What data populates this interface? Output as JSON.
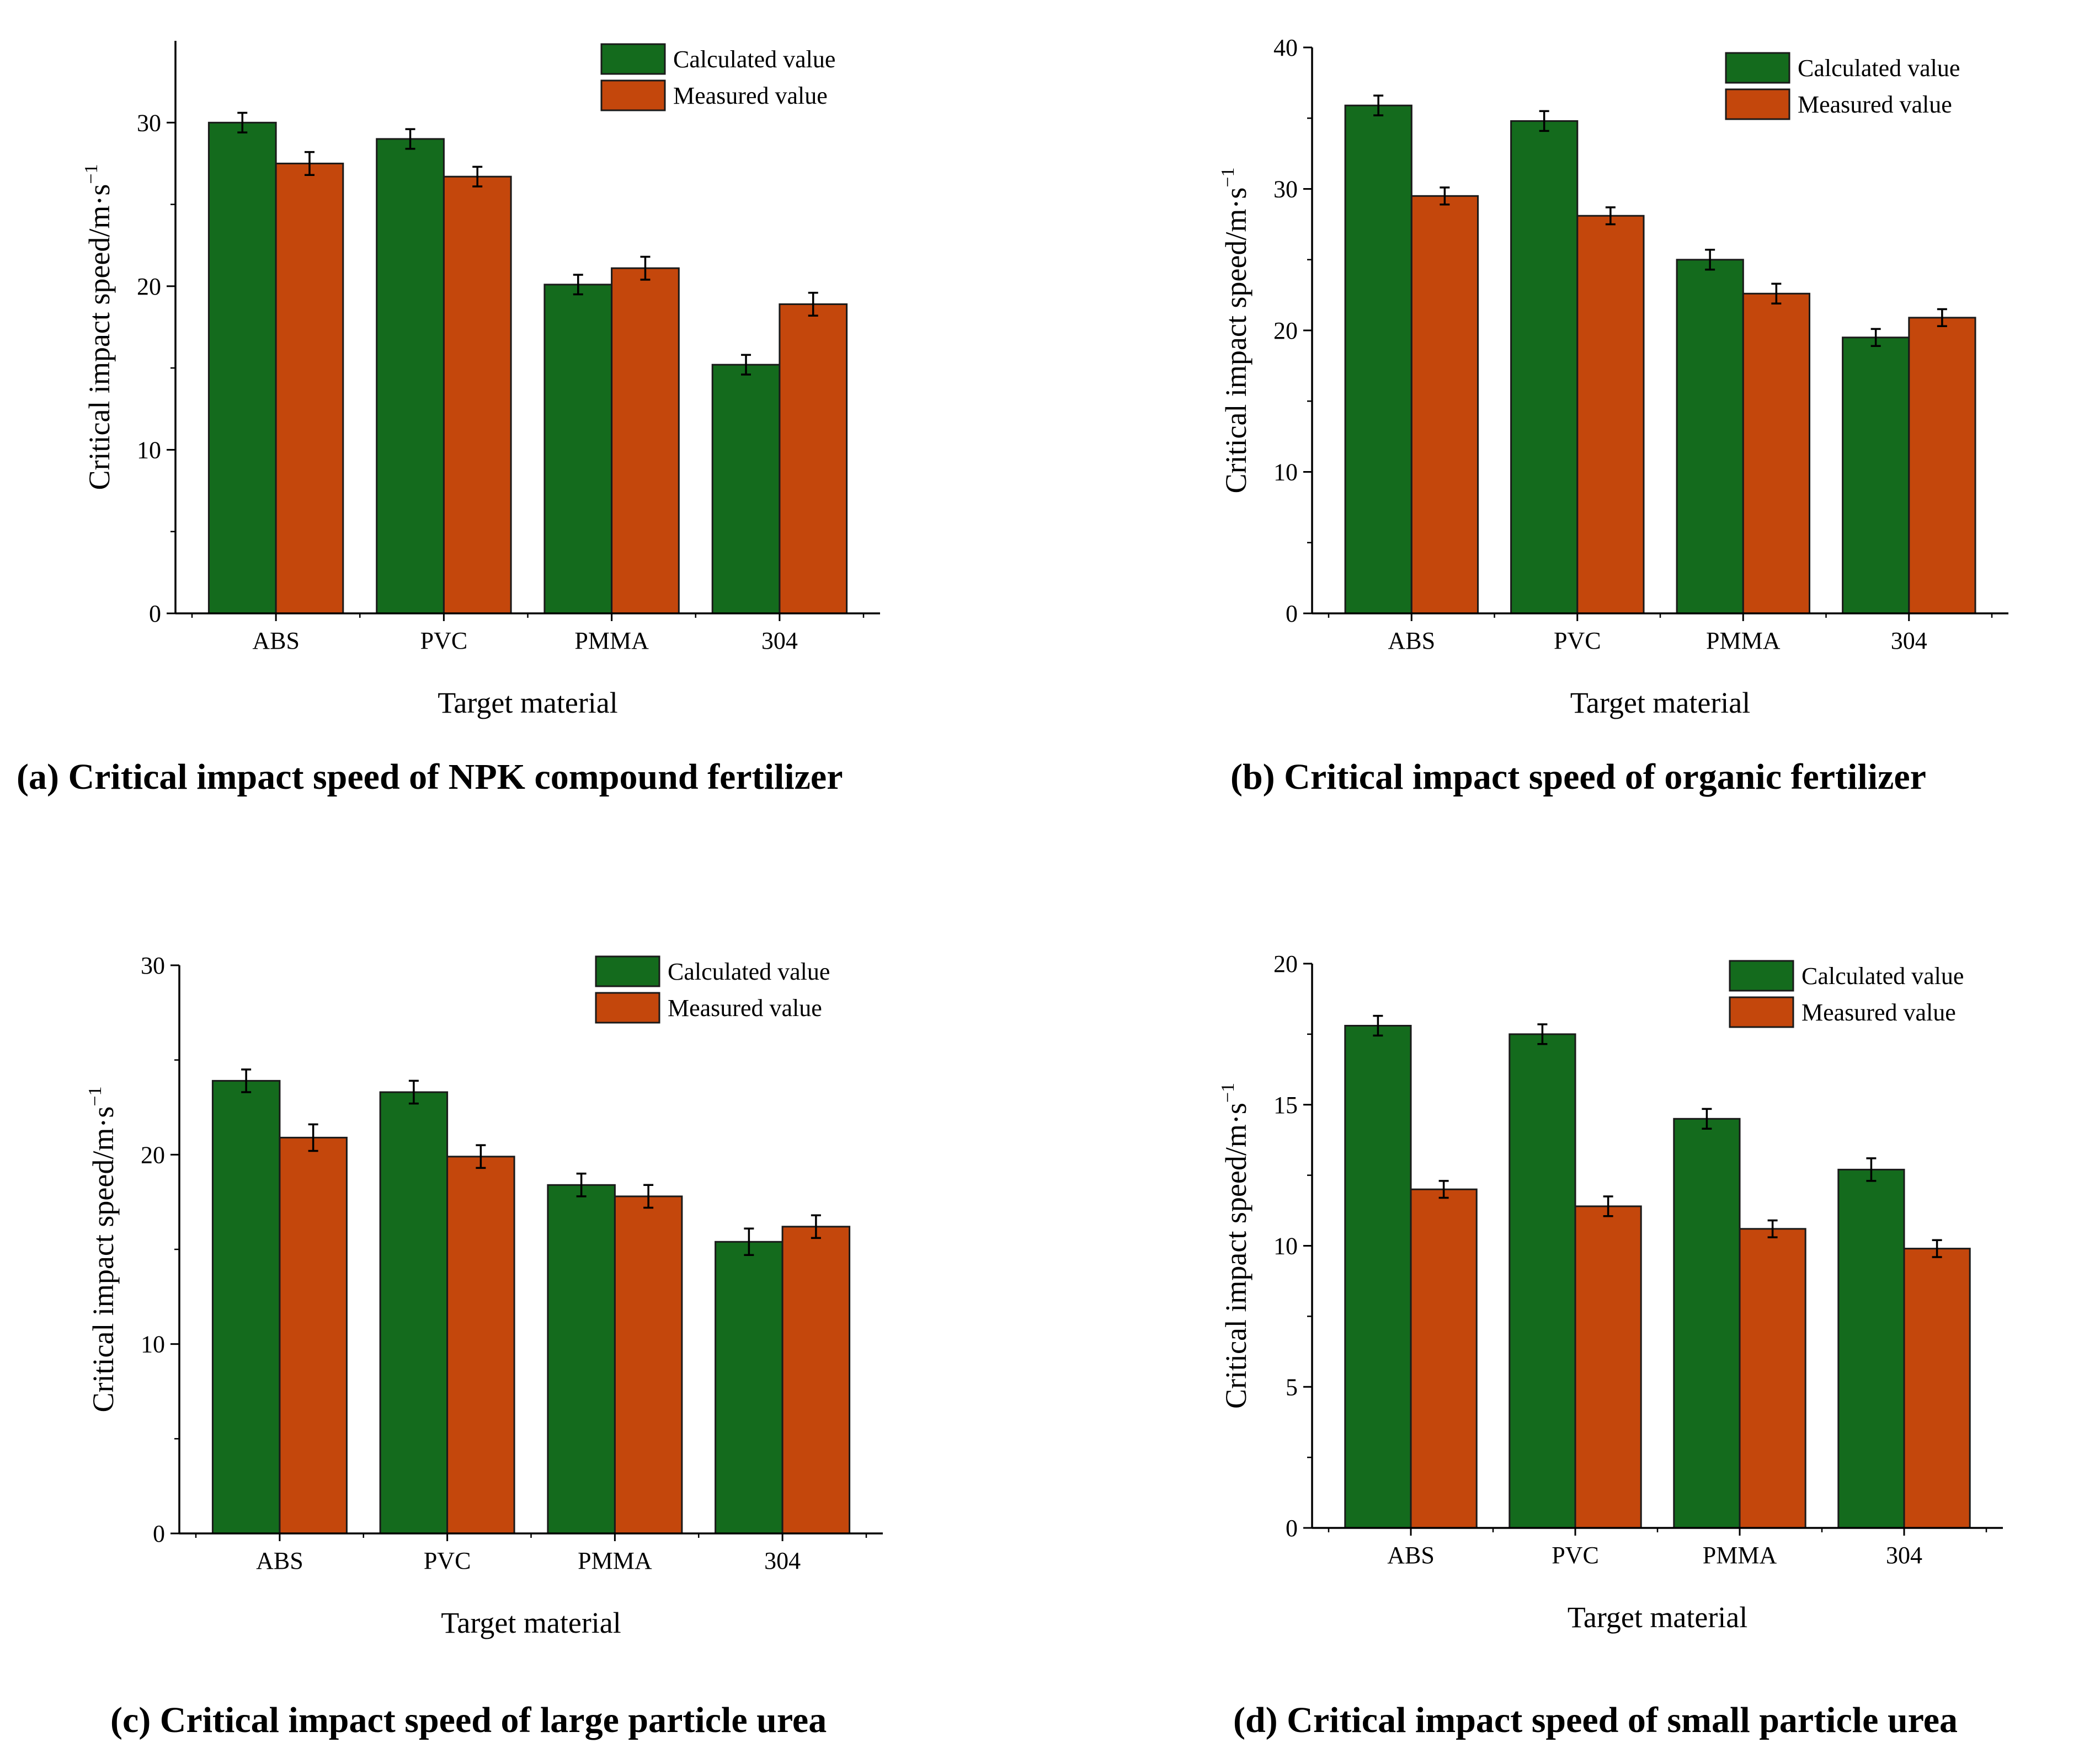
{
  "colors": {
    "calculated": "#146b1d",
    "measured": "#c4470c",
    "axis": "#000000",
    "bar_stroke": "#1a1a1a",
    "background": "#ffffff"
  },
  "chart_data": [
    {
      "type": "bar",
      "caption": "(a) Critical impact speed of NPK compound fertilizer",
      "xlabel": "Target material",
      "ylabel": "Critical impact speed/m·s",
      "ylabel_sup": "−1",
      "categories": [
        "ABS",
        "PVC",
        "PMMA",
        "304"
      ],
      "ylim": [
        0,
        35
      ],
      "yticks": [
        0,
        10,
        20,
        30
      ],
      "series": [
        {
          "name": "Calculated value",
          "values": [
            30.0,
            29.0,
            20.1,
            15.2
          ],
          "errors": [
            0.6,
            0.6,
            0.6,
            0.6
          ]
        },
        {
          "name": "Measured value",
          "values": [
            27.5,
            26.7,
            21.1,
            18.9
          ],
          "errors": [
            0.7,
            0.6,
            0.7,
            0.7
          ]
        }
      ]
    },
    {
      "type": "bar",
      "caption": "(b) Critical impact speed of organic fertilizer",
      "xlabel": "Target material",
      "ylabel": "Critical impact speed/m·s",
      "ylabel_sup": "−1",
      "categories": [
        "ABS",
        "PVC",
        "PMMA",
        "304"
      ],
      "ylim": [
        0,
        40
      ],
      "yticks": [
        0,
        10,
        20,
        30,
        40
      ],
      "series": [
        {
          "name": "Calculated value",
          "values": [
            35.9,
            34.8,
            25.0,
            19.5
          ],
          "errors": [
            0.7,
            0.7,
            0.7,
            0.6
          ]
        },
        {
          "name": "Measured value",
          "values": [
            29.5,
            28.1,
            22.6,
            20.9
          ],
          "errors": [
            0.6,
            0.6,
            0.7,
            0.6
          ]
        }
      ]
    },
    {
      "type": "bar",
      "caption": "(c) Critical impact speed of large particle urea",
      "xlabel": "Target material",
      "ylabel": "Critical impact speed/m·s",
      "ylabel_sup": "−1",
      "categories": [
        "ABS",
        "PVC",
        "PMMA",
        "304"
      ],
      "ylim": [
        0,
        30
      ],
      "yticks": [
        0,
        10,
        20,
        30
      ],
      "series": [
        {
          "name": "Calculated value",
          "values": [
            23.9,
            23.3,
            18.4,
            15.4
          ],
          "errors": [
            0.6,
            0.6,
            0.6,
            0.7
          ]
        },
        {
          "name": "Measured value",
          "values": [
            20.9,
            19.9,
            17.8,
            16.2
          ],
          "errors": [
            0.7,
            0.6,
            0.6,
            0.6
          ]
        }
      ]
    },
    {
      "type": "bar",
      "caption": "(d) Critical impact speed of small particle urea",
      "xlabel": "Target material",
      "ylabel": "Critical impact speed/m·s",
      "ylabel_sup": "−1",
      "categories": [
        "ABS",
        "PVC",
        "PMMA",
        "304"
      ],
      "ylim": [
        0,
        20
      ],
      "yticks": [
        0,
        5,
        10,
        15,
        20
      ],
      "series": [
        {
          "name": "Calculated value",
          "values": [
            17.8,
            17.5,
            14.5,
            12.7
          ],
          "errors": [
            0.35,
            0.35,
            0.35,
            0.4
          ]
        },
        {
          "name": "Measured value",
          "values": [
            12.0,
            11.4,
            10.6,
            9.9
          ],
          "errors": [
            0.3,
            0.35,
            0.3,
            0.3
          ]
        }
      ]
    }
  ]
}
